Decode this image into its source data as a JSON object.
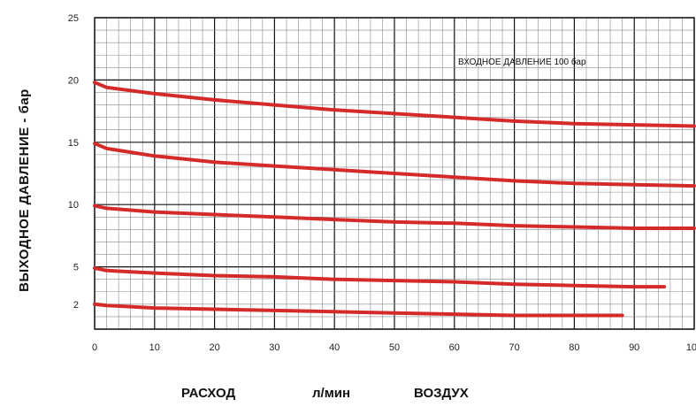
{
  "chart_data": {
    "type": "line",
    "ylabel": "ВЫХОДНОЕ ДАВЛЕНИЕ - бар",
    "xlabel_parts": [
      "РАСХОД",
      "л/мин",
      "ВОЗДУХ"
    ],
    "annotation": "ВХОДНОЕ ДАВЛЕНИЕ 100 бар",
    "xlim": [
      0,
      100
    ],
    "ylim": [
      0,
      25
    ],
    "x_ticks": [
      0,
      10,
      20,
      30,
      40,
      50,
      60,
      70,
      80,
      90,
      100
    ],
    "y_ticks": [
      2,
      5,
      10,
      15,
      20,
      25
    ],
    "grid": true,
    "series": [
      {
        "x": [
          0,
          2,
          10,
          20,
          30,
          40,
          50,
          60,
          70,
          80,
          90,
          100
        ],
        "y": [
          19.8,
          19.4,
          18.9,
          18.4,
          18.0,
          17.6,
          17.3,
          17.0,
          16.7,
          16.5,
          16.4,
          16.3
        ]
      },
      {
        "x": [
          0,
          2,
          10,
          20,
          30,
          40,
          50,
          60,
          70,
          80,
          90,
          100
        ],
        "y": [
          14.9,
          14.5,
          13.9,
          13.4,
          13.1,
          12.8,
          12.5,
          12.2,
          11.9,
          11.7,
          11.6,
          11.5
        ]
      },
      {
        "x": [
          0,
          2,
          10,
          20,
          30,
          40,
          50,
          60,
          70,
          80,
          90,
          100
        ],
        "y": [
          9.9,
          9.7,
          9.4,
          9.2,
          9.0,
          8.8,
          8.6,
          8.5,
          8.3,
          8.2,
          8.1,
          8.1
        ]
      },
      {
        "x": [
          0,
          2,
          10,
          20,
          30,
          40,
          50,
          60,
          70,
          80,
          90,
          95
        ],
        "y": [
          4.9,
          4.7,
          4.5,
          4.3,
          4.2,
          4.0,
          3.9,
          3.8,
          3.6,
          3.5,
          3.4,
          3.4
        ]
      },
      {
        "x": [
          0,
          2,
          10,
          20,
          30,
          40,
          50,
          60,
          70,
          80,
          88
        ],
        "y": [
          2.0,
          1.9,
          1.7,
          1.6,
          1.5,
          1.4,
          1.3,
          1.2,
          1.1,
          1.1,
          1.1
        ]
      }
    ]
  }
}
